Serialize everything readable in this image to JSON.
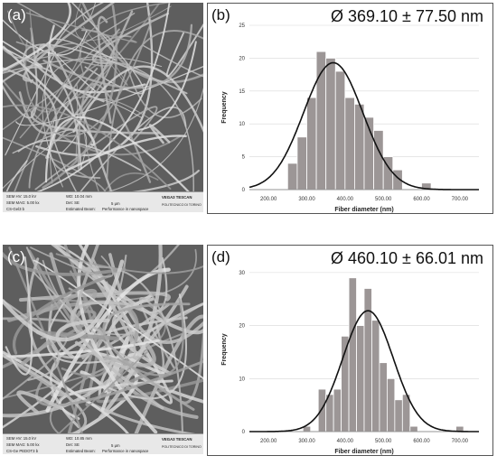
{
  "panels": [
    {
      "sem": {
        "label": "(a)",
        "info": {
          "hv": "SEM HV: 15.0 kV",
          "wd": "WD: 10.04 mm",
          "mag": "SEM MAG: 5.00 kx",
          "det": "Det: SE",
          "sample": "CS-Gel3 b",
          "beam": "Estimated Beam:",
          "scale": "5 μm",
          "brand": "VEGA3 TESCAN",
          "perf": "Performance in nanospace",
          "logo": "POLITECNICO DI TORINO"
        }
      },
      "chart": {
        "label": "(b)",
        "stat": "Ø 369.10 ± 77.50 nm"
      }
    },
    {
      "sem": {
        "label": "(c)",
        "info": {
          "hv": "SEM HV: 15.0 kV",
          "wd": "WD: 10.85 mm",
          "mag": "SEM MAG: 5.00 kx",
          "det": "Det: SE",
          "sample": "CS-Ge PEDOT3 b",
          "beam": "Estimated Beam:",
          "scale": "5 μm",
          "brand": "VEGA3 TESCAN",
          "perf": "Performance in nanospace",
          "logo": "POLITECNICO DI TORINO"
        }
      },
      "chart": {
        "label": "(d)",
        "stat": "Ø 460.10 ± 66.01 nm"
      }
    }
  ],
  "chart_data": [
    {
      "type": "bar",
      "xlabel": "Fiber diameter (nm)",
      "ylabel": "Frequency",
      "xlim": [
        150,
        750
      ],
      "ylim": [
        0,
        25
      ],
      "xticks": [
        "200.00",
        "300.00",
        "400.00",
        "500.00",
        "600.00",
        "700.00"
      ],
      "yticks": [
        "0",
        "5",
        "10",
        "15",
        "20",
        "25"
      ],
      "bin_width": 25,
      "bins": [
        {
          "x0": 250,
          "value": 4
        },
        {
          "x0": 275,
          "value": 8
        },
        {
          "x0": 300,
          "value": 14
        },
        {
          "x0": 325,
          "value": 21
        },
        {
          "x0": 350,
          "value": 20
        },
        {
          "x0": 375,
          "value": 18
        },
        {
          "x0": 400,
          "value": 14
        },
        {
          "x0": 425,
          "value": 13
        },
        {
          "x0": 450,
          "value": 11
        },
        {
          "x0": 475,
          "value": 9
        },
        {
          "x0": 500,
          "value": 5
        },
        {
          "x0": 525,
          "value": 3
        },
        {
          "x0": 600,
          "value": 1
        }
      ],
      "fit": {
        "mean": 369.1,
        "sd": 77.5,
        "peak": 19.3
      }
    },
    {
      "type": "bar",
      "xlabel": "Fiber diameter (nm)",
      "ylabel": "Frequency",
      "xlim": [
        150,
        750
      ],
      "ylim": [
        0,
        31
      ],
      "xticks": [
        "200.00",
        "300.00",
        "400.00",
        "500.00",
        "600.00",
        "700.00"
      ],
      "yticks": [
        "0",
        "10",
        "20",
        "30"
      ],
      "bin_width": 20,
      "bins": [
        {
          "x0": 290,
          "value": 1
        },
        {
          "x0": 330,
          "value": 8
        },
        {
          "x0": 350,
          "value": 7
        },
        {
          "x0": 370,
          "value": 8
        },
        {
          "x0": 390,
          "value": 18
        },
        {
          "x0": 410,
          "value": 29
        },
        {
          "x0": 430,
          "value": 20
        },
        {
          "x0": 450,
          "value": 27
        },
        {
          "x0": 470,
          "value": 21
        },
        {
          "x0": 490,
          "value": 13
        },
        {
          "x0": 510,
          "value": 10
        },
        {
          "x0": 530,
          "value": 6
        },
        {
          "x0": 550,
          "value": 7
        },
        {
          "x0": 570,
          "value": 1
        },
        {
          "x0": 690,
          "value": 1
        }
      ],
      "fit": {
        "mean": 460.1,
        "sd": 66.01,
        "peak": 22.8
      }
    }
  ]
}
